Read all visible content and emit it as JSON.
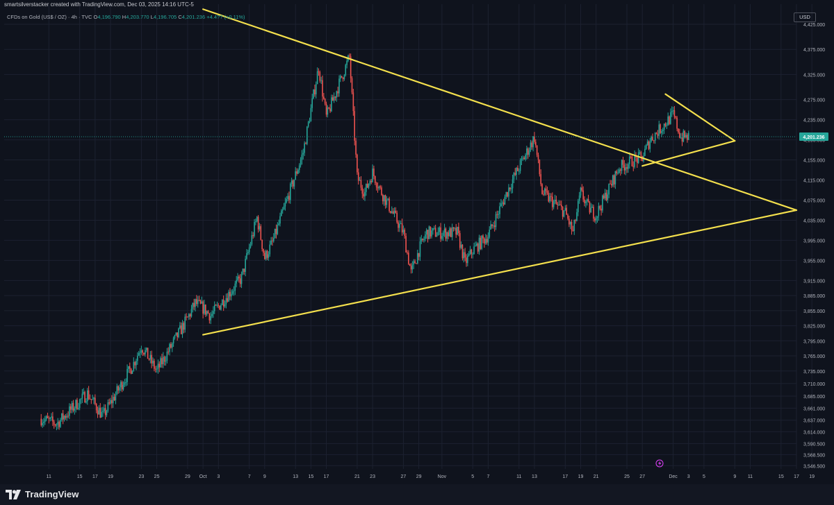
{
  "header": {
    "title": "smartsilverstacker created with TradingView.com, Dec 03, 2025 14:16 UTC-5"
  },
  "symbol_info": {
    "name": "CFDs on Gold (US$ / OZ) · 4h · TVC",
    "open_label": "O",
    "open": "4,196.790",
    "high_label": "H",
    "high": "4,203.770",
    "low_label": "L",
    "low": "4,196.705",
    "close_label": "C",
    "close": "4,201.236",
    "change": "+4.4?? (+0.11%)"
  },
  "currency_button": "USD",
  "brand": {
    "logo_text": "TradingView"
  },
  "colors": {
    "background": "#0f131d",
    "bull": "#26a69a",
    "bear": "#ef5350",
    "trendline": "#f4e04d",
    "grid": "#1c2130",
    "price_tag": "#26a69a"
  },
  "chart_data": {
    "type": "candlestick",
    "title": "CFDs on Gold (US$ / OZ) · 4h · TVC",
    "xlabel": "",
    "ylabel": "",
    "ylim": [
      3540,
      4465
    ],
    "price_ticks": [
      "4,425.000",
      "4,375.000",
      "4,325.000",
      "4,275.000",
      "4,235.000",
      "4,195.000",
      "4,155.000",
      "4,115.000",
      "4,075.000",
      "4,035.000",
      "3,995.000",
      "3,955.000",
      "3,915.000",
      "3,885.000",
      "3,855.000",
      "3,825.000",
      "3,795.000",
      "3,765.000",
      "3,735.000",
      "3,710.000",
      "3,685.000",
      "3,661.000",
      "3,637.000",
      "3,614.000",
      "3,590.500",
      "3,568.500",
      "3,546.500"
    ],
    "current_price": "4,201.236",
    "x_ticks": [
      "11",
      "15",
      "17",
      "19",
      "23",
      "25",
      "29",
      "Oct",
      "3",
      "7",
      "9",
      "13",
      "15",
      "17",
      "21",
      "23",
      "27",
      "29",
      "Nov",
      "5",
      "7",
      "11",
      "13",
      "17",
      "19",
      "21",
      "25",
      "27",
      "Dec",
      "3",
      "5",
      "9",
      "11",
      "15",
      "17",
      "19"
    ],
    "path": [
      [
        "Sep 10",
        3640
      ],
      [
        "Sep 12",
        3630
      ],
      [
        "Sep 16",
        3690
      ],
      [
        "Sep 18",
        3645
      ],
      [
        "Sep 22",
        3750
      ],
      [
        "Sep 23",
        3785
      ],
      [
        "Sep 25",
        3735
      ],
      [
        "Sep 29",
        3840
      ],
      [
        "Sep 30",
        3870
      ],
      [
        "Oct 1",
        3860
      ],
      [
        "Oct 2",
        3845
      ],
      [
        "Oct 6",
        3920
      ],
      [
        "Oct 8",
        4040
      ],
      [
        "Oct 9",
        3960
      ],
      [
        "Oct 10",
        3990
      ],
      [
        "Oct 14",
        4170
      ],
      [
        "Oct 16",
        4340
      ],
      [
        "Oct 17",
        4240
      ],
      [
        "Oct 20",
        4360
      ],
      [
        "Oct 21",
        4120
      ],
      [
        "Oct 22",
        4090
      ],
      [
        "Oct 23",
        4130
      ],
      [
        "Oct 24",
        4095
      ],
      [
        "Oct 27",
        4010
      ],
      [
        "Oct 28",
        3930
      ],
      [
        "Oct 29",
        3975
      ],
      [
        "Oct 30",
        4010
      ],
      [
        "Nov 3",
        4010
      ],
      [
        "Nov 4",
        3950
      ],
      [
        "Nov 5",
        3975
      ],
      [
        "Nov 7",
        4005
      ],
      [
        "Nov 10",
        4110
      ],
      [
        "Nov 12",
        4170
      ],
      [
        "Nov 13",
        4200
      ],
      [
        "Nov 14",
        4090
      ],
      [
        "Nov 17",
        4050
      ],
      [
        "Nov 18",
        4010
      ],
      [
        "Nov 19",
        4090
      ],
      [
        "Nov 20",
        4060
      ],
      [
        "Nov 21",
        4045
      ],
      [
        "Nov 24",
        4140
      ],
      [
        "Nov 26",
        4155
      ],
      [
        "Nov 27",
        4160
      ],
      [
        "Nov 28",
        4195
      ],
      [
        "Dec 1",
        4245
      ],
      [
        "Dec 2",
        4200
      ],
      [
        "Dec 3",
        4201
      ]
    ],
    "trendlines": [
      {
        "from": [
          "Oct 1",
          4455
        ],
        "to": [
          "Dec 17",
          4055
        ]
      },
      {
        "from": [
          "Oct 1",
          3807
        ],
        "to": [
          "Dec 17",
          4055
        ]
      },
      {
        "from": [
          "Nov 30",
          4286
        ],
        "to": [
          "Dec 9",
          4193
        ]
      },
      {
        "from": [
          "Nov 27",
          4143
        ],
        "to": [
          "Dec 9",
          4193
        ]
      }
    ]
  }
}
